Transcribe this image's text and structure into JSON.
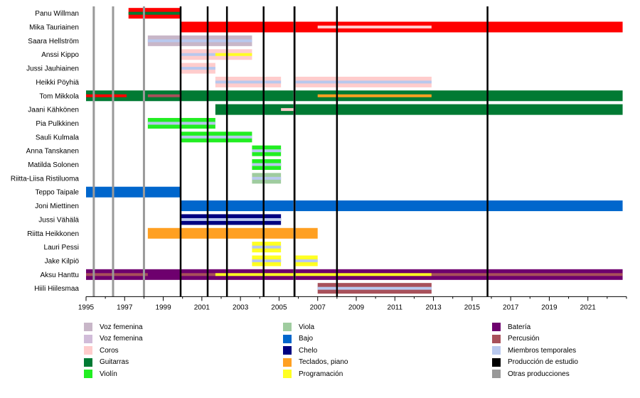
{
  "chart_data": {
    "type": "timeline",
    "x_axis": {
      "min": 1995,
      "max": 2023,
      "ticks": [
        1995,
        1997,
        1999,
        2001,
        2003,
        2005,
        2007,
        2009,
        2011,
        2013,
        2015,
        2017,
        2019,
        2021
      ]
    },
    "members": [
      "Panu Willman",
      "Mika Tauriainen",
      "Saara Hellström",
      "Anssi Kippo",
      "Jussi Jauhiainen",
      "Heikki Pöyhiä",
      "Tom Mikkola",
      "Jaani Kähkönen",
      "Pia Pulkkinen",
      "Sauli Kulmala",
      "Anna Tanskanen",
      "Matilda Solonen",
      "Riitta-Liisa Ristiluoma",
      "Teppo Taipale",
      "Joni Miettinen",
      "Jussi Vähälä",
      "Riitta Heikkonen",
      "Lauri Pessi",
      "Jake Kilpiö",
      "Aksu Hanttu",
      "Hiili Hiilesmaa"
    ],
    "colors": {
      "voz1": "#c8b6c8",
      "voz2": "#d1bcd9",
      "coros": "#ffcccc",
      "guitarras": "#007a33",
      "violin": "#22ee22",
      "viola": "#9fcc9f",
      "bajo": "#0066cc",
      "chelo": "#000080",
      "teclados": "#ffa022",
      "programacion": "#ffff22",
      "bateria": "#6e006e",
      "percusion": "#a8505a",
      "temporales": "#b8c8ee",
      "estudio": "#000000",
      "otras": "#999999",
      "voz_red": "#ff0000"
    },
    "bars": [
      {
        "row": 0,
        "start": 1997.2,
        "end": 1999.9,
        "color": "voz_red"
      },
      {
        "row": 0,
        "start": 1997.2,
        "end": 1999.9,
        "color": "guitarras",
        "thin": true
      },
      {
        "row": 1,
        "start": 1999.9,
        "end": 2022.8,
        "color": "voz_red"
      },
      {
        "row": 1,
        "start": 2007.0,
        "end": 2012.9,
        "color": "coros",
        "thin": true
      },
      {
        "row": 2,
        "start": 1998.2,
        "end": 2003.6,
        "color": "voz1"
      },
      {
        "row": 2,
        "start": 1998.2,
        "end": 2003.6,
        "color": "temporales",
        "thin": true
      },
      {
        "row": 3,
        "start": 1999.9,
        "end": 2003.6,
        "color": "coros"
      },
      {
        "row": 3,
        "start": 1999.9,
        "end": 2001.7,
        "color": "temporales",
        "thin": true
      },
      {
        "row": 3,
        "start": 2001.7,
        "end": 2003.6,
        "color": "programacion",
        "thin": true
      },
      {
        "row": 4,
        "start": 1999.9,
        "end": 2001.7,
        "color": "coros"
      },
      {
        "row": 4,
        "start": 1999.9,
        "end": 2001.7,
        "color": "temporales",
        "thin": true
      },
      {
        "row": 5,
        "start": 2001.7,
        "end": 2005.1,
        "color": "coros"
      },
      {
        "row": 5,
        "start": 2001.7,
        "end": 2005.1,
        "color": "temporales",
        "thin": true
      },
      {
        "row": 5,
        "start": 2005.8,
        "end": 2012.9,
        "color": "coros"
      },
      {
        "row": 5,
        "start": 2005.8,
        "end": 2012.9,
        "color": "temporales",
        "thin": true
      },
      {
        "row": 6,
        "start": 1995.0,
        "end": 2022.8,
        "color": "guitarras"
      },
      {
        "row": 6,
        "start": 1995.0,
        "end": 1997.1,
        "color": "voz_red",
        "thin": true
      },
      {
        "row": 6,
        "start": 1998.2,
        "end": 1999.9,
        "color": "percusion",
        "thin": true
      },
      {
        "row": 6,
        "start": 2007.0,
        "end": 2012.9,
        "color": "teclados",
        "thin": true
      },
      {
        "row": 7,
        "start": 2001.7,
        "end": 2022.8,
        "color": "guitarras"
      },
      {
        "row": 7,
        "start": 2005.1,
        "end": 2005.8,
        "color": "coros",
        "thin": true
      },
      {
        "row": 8,
        "start": 1998.2,
        "end": 2001.7,
        "color": "violin"
      },
      {
        "row": 8,
        "start": 1998.2,
        "end": 2001.7,
        "color": "temporales",
        "thin": true
      },
      {
        "row": 9,
        "start": 1999.9,
        "end": 2003.6,
        "color": "violin"
      },
      {
        "row": 9,
        "start": 1999.9,
        "end": 2003.6,
        "color": "temporales",
        "thin": true
      },
      {
        "row": 10,
        "start": 2003.6,
        "end": 2005.1,
        "color": "violin"
      },
      {
        "row": 10,
        "start": 2003.6,
        "end": 2005.1,
        "color": "temporales",
        "thin": true
      },
      {
        "row": 11,
        "start": 2003.6,
        "end": 2005.1,
        "color": "violin"
      },
      {
        "row": 11,
        "start": 2003.6,
        "end": 2005.1,
        "color": "temporales",
        "thin": true
      },
      {
        "row": 12,
        "start": 2003.6,
        "end": 2005.1,
        "color": "viola"
      },
      {
        "row": 12,
        "start": 2003.6,
        "end": 2005.1,
        "color": "temporales",
        "thin": true
      },
      {
        "row": 13,
        "start": 1995.0,
        "end": 1999.9,
        "color": "bajo"
      },
      {
        "row": 14,
        "start": 1999.9,
        "end": 2022.8,
        "color": "bajo"
      },
      {
        "row": 15,
        "start": 1999.9,
        "end": 2005.1,
        "color": "chelo"
      },
      {
        "row": 15,
        "start": 1999.9,
        "end": 2005.1,
        "color": "temporales",
        "thin": true
      },
      {
        "row": 16,
        "start": 1998.2,
        "end": 2007.0,
        "color": "teclados"
      },
      {
        "row": 17,
        "start": 2003.6,
        "end": 2005.1,
        "color": "programacion"
      },
      {
        "row": 17,
        "start": 2003.6,
        "end": 2005.1,
        "color": "temporales",
        "thin": true
      },
      {
        "row": 18,
        "start": 2003.6,
        "end": 2005.1,
        "color": "programacion"
      },
      {
        "row": 18,
        "start": 2003.6,
        "end": 2005.1,
        "color": "temporales",
        "thin": true
      },
      {
        "row": 18,
        "start": 2005.8,
        "end": 2007.0,
        "color": "programacion"
      },
      {
        "row": 18,
        "start": 2005.8,
        "end": 2007.0,
        "color": "temporales",
        "thin": true
      },
      {
        "row": 19,
        "start": 1995.0,
        "end": 2022.8,
        "color": "bateria"
      },
      {
        "row": 19,
        "start": 1995.0,
        "end": 1998.2,
        "color": "percusion",
        "thin": true
      },
      {
        "row": 19,
        "start": 1999.9,
        "end": 2001.7,
        "color": "percusion",
        "thin": true
      },
      {
        "row": 19,
        "start": 2001.7,
        "end": 2012.9,
        "color": "programacion",
        "thin": true
      },
      {
        "row": 19,
        "start": 2012.9,
        "end": 2022.8,
        "color": "percusion",
        "thin": true
      },
      {
        "row": 20,
        "start": 2007.0,
        "end": 2012.9,
        "color": "percusion"
      },
      {
        "row": 20,
        "start": 2007.0,
        "end": 2012.9,
        "color": "temporales",
        "thin": true
      }
    ],
    "studio_lines": [
      1999.9,
      2001.3,
      2002.3,
      2004.2,
      2005.8,
      2008.0,
      2015.8
    ],
    "other_lines": [
      1995.4,
      1996.4,
      1998.0,
      2005.8
    ],
    "legend": [
      {
        "label": "Voz femenina",
        "color": "voz1",
        "col": 0
      },
      {
        "label": "Voz femenina",
        "color": "voz2",
        "col": 0
      },
      {
        "label": "Coros",
        "color": "coros",
        "col": 0
      },
      {
        "label": "Guitarras",
        "color": "guitarras",
        "col": 0
      },
      {
        "label": "Violín",
        "color": "violin",
        "col": 0
      },
      {
        "label": "Viola",
        "color": "viola",
        "col": 1
      },
      {
        "label": "Bajo",
        "color": "bajo",
        "col": 1
      },
      {
        "label": "Chelo",
        "color": "chelo",
        "col": 1
      },
      {
        "label": "Teclados, piano",
        "color": "teclados",
        "col": 1
      },
      {
        "label": "Programación",
        "color": "programacion",
        "col": 1
      },
      {
        "label": "Batería",
        "color": "bateria",
        "col": 2
      },
      {
        "label": "Percusión",
        "color": "percusion",
        "col": 2
      },
      {
        "label": "Miembros temporales",
        "color": "temporales",
        "col": 2
      },
      {
        "label": "Producción de estudio",
        "color": "estudio",
        "col": 2
      },
      {
        "label": "Otras producciones",
        "color": "otras",
        "col": 2
      }
    ]
  }
}
